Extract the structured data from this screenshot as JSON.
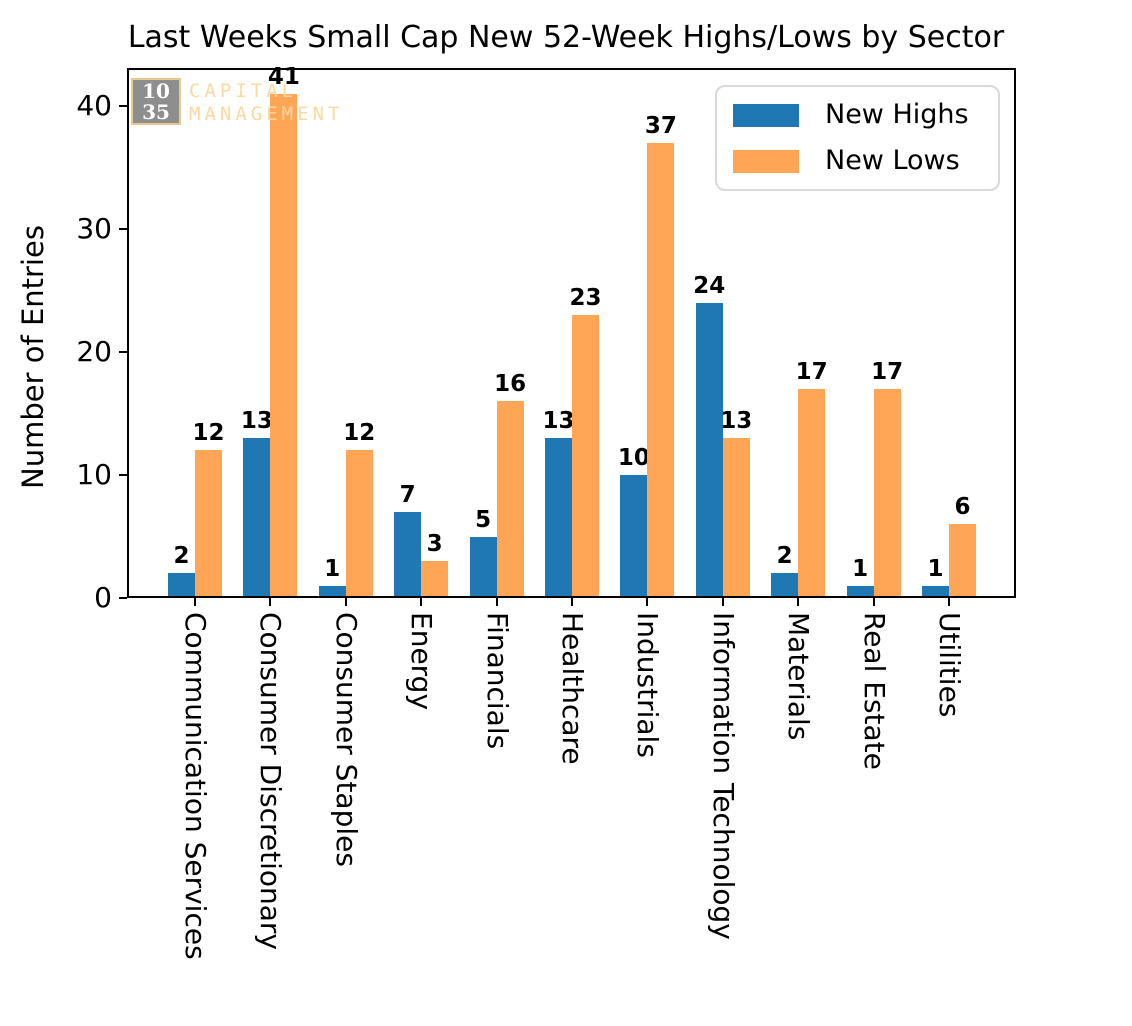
{
  "chart_data": {
    "type": "bar",
    "title": "Last Weeks Small Cap New 52-Week Highs/Lows by Sector",
    "xlabel": "",
    "ylabel": "Number of Entries",
    "categories": [
      "Communication Services",
      "Consumer Discretionary",
      "Consumer Staples",
      "Energy",
      "Financials",
      "Healthcare",
      "Industrials",
      "Information Technology",
      "Materials",
      "Real Estate",
      "Utilities"
    ],
    "series": [
      {
        "name": "New Highs",
        "color": "#1f77b4",
        "values": [
          2,
          13,
          1,
          7,
          5,
          13,
          10,
          24,
          2,
          1,
          1
        ]
      },
      {
        "name": "New Lows",
        "color": "#ffa656",
        "values": [
          12,
          41,
          12,
          3,
          16,
          23,
          37,
          13,
          17,
          17,
          6
        ]
      }
    ],
    "yticks": [
      0,
      10,
      20,
      30,
      40
    ],
    "ylim": [
      0,
      43
    ],
    "grid": false,
    "legend_position": "upper right",
    "bar_value_labels": true
  },
  "watermark": {
    "box_line1": "10",
    "box_line2": "35",
    "text_line1": "CAPITAL",
    "text_line2": "MANAGEMENT"
  }
}
